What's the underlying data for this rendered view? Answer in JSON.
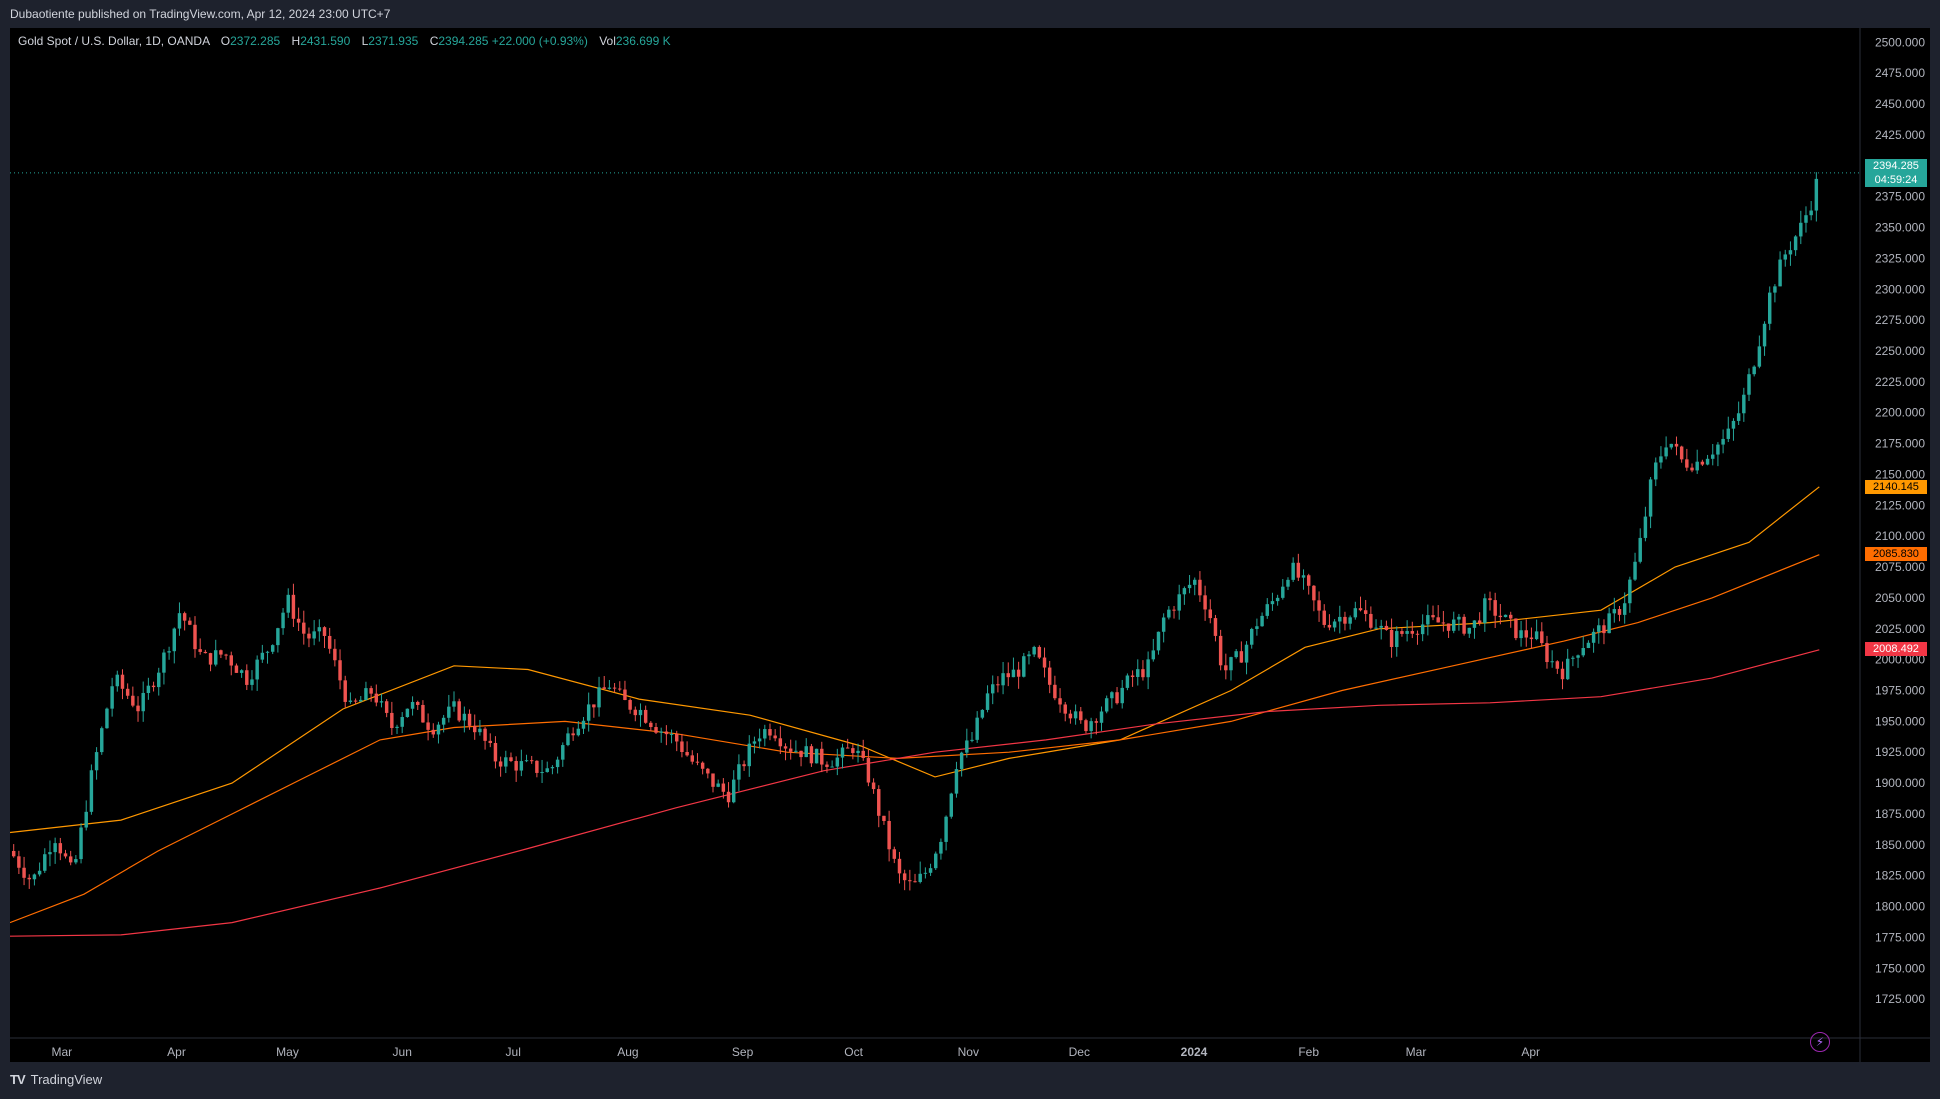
{
  "published": "Dubaotiente published on TradingView.com, Apr 12, 2024 23:00 UTC+7",
  "symbol": {
    "name": "Gold Spot / U.S. Dollar, 1D, OANDA",
    "o_label": "O",
    "o": "2372.285",
    "h_label": "H",
    "h": "2431.590",
    "l_label": "L",
    "l": "2371.935",
    "c_label": "C",
    "c": "2394.285",
    "change": "+22.000 (+0.93%)",
    "vol_label": "Vol",
    "vol": "236.699 K"
  },
  "price_tags": {
    "last_price": "2394.285",
    "countdown": "04:59:24",
    "ma_short": "2140.145",
    "ma_mid": "2085.830",
    "ma_long": "2008.492"
  },
  "footer": {
    "brand": "TradingView"
  },
  "colors": {
    "up": "#26a69a",
    "down": "#ef5350",
    "ma_short": "#ff9800",
    "ma_mid": "#ff6d00",
    "ma_long": "#f23645"
  },
  "chart_data": {
    "type": "candlestick",
    "ylim": [
      1700,
      2510
    ],
    "y_ticks": [
      "1725.000",
      "1750.000",
      "1775.000",
      "1800.000",
      "1825.000",
      "1850.000",
      "1875.000",
      "1900.000",
      "1925.000",
      "1950.000",
      "1975.000",
      "2000.000",
      "2025.000",
      "2050.000",
      "2075.000",
      "2100.000",
      "2125.000",
      "2150.000",
      "2175.000",
      "2200.000",
      "2225.000",
      "2250.000",
      "2275.000",
      "2300.000",
      "2325.000",
      "2350.000",
      "2375.000",
      "2400.000",
      "2425.000",
      "2450.000",
      "2475.000",
      "2500.000"
    ],
    "x_labels": [
      "Mar",
      "Apr",
      "May",
      "Jun",
      "Jul",
      "Aug",
      "Sep",
      "Oct",
      "Nov",
      "Dec",
      "2024",
      "Feb",
      "Mar",
      "Apr"
    ],
    "x_label_days": [
      14,
      45,
      75,
      106,
      136,
      167,
      198,
      228,
      259,
      289,
      320,
      351,
      380,
      411
    ],
    "price_path": [
      [
        0,
        1845
      ],
      [
        6,
        1820
      ],
      [
        12,
        1858
      ],
      [
        17,
        1825
      ],
      [
        22,
        1905
      ],
      [
        28,
        1985
      ],
      [
        35,
        1960
      ],
      [
        42,
        2005
      ],
      [
        46,
        2040
      ],
      [
        52,
        2000
      ],
      [
        58,
        2005
      ],
      [
        64,
        1985
      ],
      [
        70,
        2010
      ],
      [
        75,
        2048
      ],
      [
        80,
        2018
      ],
      [
        85,
        2020
      ],
      [
        92,
        1960
      ],
      [
        98,
        1975
      ],
      [
        103,
        1945
      ],
      [
        108,
        1965
      ],
      [
        114,
        1945
      ],
      [
        120,
        1960
      ],
      [
        126,
        1945
      ],
      [
        131,
        1920
      ],
      [
        137,
        1915
      ],
      [
        142,
        1912
      ],
      [
        146,
        1910
      ],
      [
        152,
        1945
      ],
      [
        156,
        1960
      ],
      [
        162,
        1980
      ],
      [
        166,
        1965
      ],
      [
        170,
        1960
      ],
      [
        175,
        1945
      ],
      [
        180,
        1935
      ],
      [
        185,
        1915
      ],
      [
        190,
        1900
      ],
      [
        194,
        1890
      ],
      [
        198,
        1915
      ],
      [
        202,
        1940
      ],
      [
        206,
        1945
      ],
      [
        210,
        1930
      ],
      [
        215,
        1925
      ],
      [
        220,
        1918
      ],
      [
        224,
        1920
      ],
      [
        228,
        1930
      ],
      [
        232,
        1905
      ],
      [
        236,
        1865
      ],
      [
        240,
        1825
      ],
      [
        244,
        1815
      ],
      [
        248,
        1830
      ],
      [
        252,
        1860
      ],
      [
        256,
        1920
      ],
      [
        260,
        1935
      ],
      [
        264,
        1970
      ],
      [
        268,
        1985
      ],
      [
        272,
        1990
      ],
      [
        277,
        2005
      ],
      [
        281,
        1980
      ],
      [
        286,
        1960
      ],
      [
        290,
        1945
      ],
      [
        295,
        1960
      ],
      [
        299,
        1970
      ],
      [
        303,
        1985
      ],
      [
        308,
        1995
      ],
      [
        312,
        2035
      ],
      [
        316,
        2050
      ],
      [
        320,
        2065
      ],
      [
        324,
        2040
      ],
      [
        328,
        1990
      ],
      [
        333,
        2005
      ],
      [
        337,
        2030
      ],
      [
        342,
        2050
      ],
      [
        346,
        2075
      ],
      [
        350,
        2060
      ],
      [
        355,
        2030
      ],
      [
        360,
        2035
      ],
      [
        364,
        2040
      ],
      [
        369,
        2030
      ],
      [
        373,
        2015
      ],
      [
        378,
        2025
      ],
      [
        383,
        2030
      ],
      [
        387,
        2030
      ],
      [
        392,
        2028
      ],
      [
        395,
        2025
      ],
      [
        399,
        2045
      ],
      [
        403,
        2035
      ],
      [
        408,
        2020
      ],
      [
        412,
        2020
      ],
      [
        416,
        2000
      ],
      [
        420,
        1990
      ],
      [
        424,
        2010
      ],
      [
        428,
        2020
      ],
      [
        432,
        2030
      ],
      [
        436,
        2045
      ],
      [
        440,
        2085
      ],
      [
        444,
        2150
      ],
      [
        448,
        2180
      ],
      [
        452,
        2160
      ],
      [
        456,
        2160
      ],
      [
        460,
        2170
      ],
      [
        464,
        2180
      ],
      [
        468,
        2205
      ],
      [
        472,
        2250
      ],
      [
        476,
        2300
      ],
      [
        480,
        2330
      ],
      [
        484,
        2350
      ],
      [
        487,
        2372
      ],
      [
        489,
        2394
      ]
    ],
    "moving_averages": [
      {
        "pts": [
          [
            0,
            1860
          ],
          [
            30,
            1870
          ],
          [
            60,
            1900
          ],
          [
            90,
            1960
          ],
          [
            120,
            1995
          ],
          [
            140,
            1992
          ],
          [
            170,
            1968
          ],
          [
            200,
            1955
          ],
          [
            230,
            1930
          ],
          [
            250,
            1905
          ],
          [
            270,
            1920
          ],
          [
            300,
            1935
          ],
          [
            330,
            1975
          ],
          [
            350,
            2010
          ],
          [
            370,
            2025
          ],
          [
            400,
            2030
          ],
          [
            430,
            2040
          ],
          [
            450,
            2075
          ],
          [
            470,
            2095
          ],
          [
            489,
            2140
          ]
        ]
      },
      {
        "pts": [
          [
            0,
            1787
          ],
          [
            20,
            1810
          ],
          [
            40,
            1845
          ],
          [
            60,
            1875
          ],
          [
            80,
            1905
          ],
          [
            100,
            1935
          ],
          [
            120,
            1945
          ],
          [
            150,
            1950
          ],
          [
            180,
            1940
          ],
          [
            210,
            1925
          ],
          [
            240,
            1920
          ],
          [
            270,
            1925
          ],
          [
            300,
            1935
          ],
          [
            330,
            1950
          ],
          [
            360,
            1975
          ],
          [
            390,
            1995
          ],
          [
            420,
            2015
          ],
          [
            440,
            2030
          ],
          [
            460,
            2050
          ],
          [
            489,
            2085
          ]
        ]
      },
      {
        "pts": [
          [
            0,
            1776
          ],
          [
            30,
            1777
          ],
          [
            60,
            1787
          ],
          [
            100,
            1815
          ],
          [
            140,
            1847
          ],
          [
            180,
            1880
          ],
          [
            220,
            1910
          ],
          [
            250,
            1925
          ],
          [
            280,
            1935
          ],
          [
            310,
            1948
          ],
          [
            340,
            1958
          ],
          [
            370,
            1963
          ],
          [
            400,
            1965
          ],
          [
            430,
            1970
          ],
          [
            460,
            1985
          ],
          [
            489,
            2008
          ]
        ]
      }
    ]
  }
}
